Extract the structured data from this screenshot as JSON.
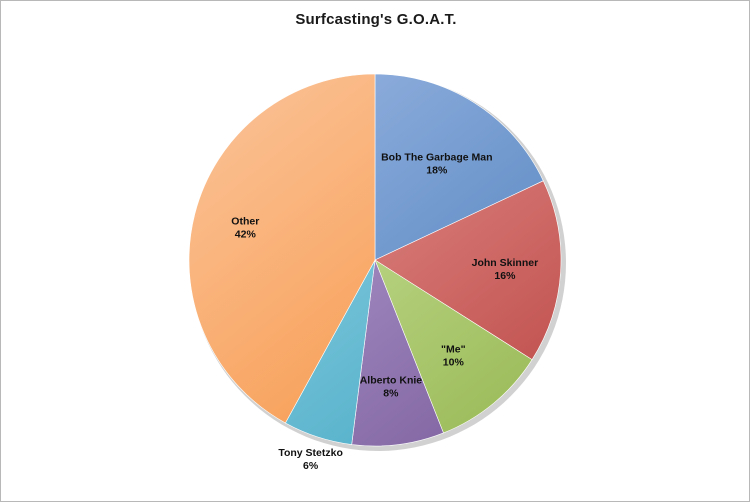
{
  "chart_data": {
    "type": "pie",
    "title": "Surfcasting's G.O.A.T.",
    "start_angle_deg": 90,
    "direction": "clockwise",
    "slices": [
      {
        "label": "Bob The Garbage Man",
        "value": 18,
        "value_label": "18%",
        "color": "#4f81bd",
        "highlight": "#9db8e4"
      },
      {
        "label": "John Skinner",
        "value": 16,
        "value_label": "16%",
        "color": "#c0504d",
        "highlight": "#eb9f9d"
      },
      {
        "label": "\"Me\"",
        "value": 10,
        "value_label": "10%",
        "color": "#9bbb59",
        "highlight": "#d5ebaa"
      },
      {
        "label": "Alberto Knie",
        "value": 8,
        "value_label": "8%",
        "color": "#8064a2",
        "highlight": "#bfaad8"
      },
      {
        "label": "Tony Stetzko",
        "value": 6,
        "value_label": "6%",
        "color": "#4bacc6",
        "highlight": "#9fd9ea"
      },
      {
        "label": "Other",
        "value": 42,
        "value_label": "42%",
        "color": "#f79646",
        "highlight": "#fbc49a"
      }
    ]
  }
}
